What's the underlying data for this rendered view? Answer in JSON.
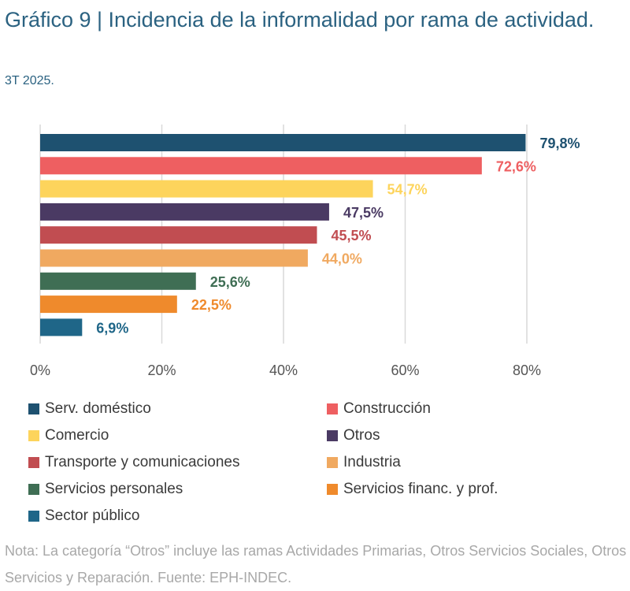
{
  "title": "Gráfico 9 | Incidencia de la informalidad por rama de actividad.",
  "subtitle": "3T 2025.",
  "note": "Nota: La categoría “Otros” incluye las ramas Actividades Primarias, Otros Servicios Sociales, Otros Servicios y Reparación. Fuente: EPH-INDEC.",
  "chart_data": {
    "type": "bar",
    "orientation": "horizontal",
    "title": "Gráfico 9 | Incidencia de la informalidad por rama de actividad.",
    "xlabel": "",
    "ylabel": "",
    "xlim": [
      0,
      80
    ],
    "grid": true,
    "legend_placement": "bottom",
    "x_ticks": [
      "0%",
      "20%",
      "40%",
      "60%",
      "80%"
    ],
    "x_tick_values": [
      0,
      20,
      40,
      60,
      80
    ],
    "categories": [
      "Serv. doméstico",
      "Construcción",
      "Comercio",
      "Otros",
      "Transporte y comunicaciones",
      "Industria",
      "Servicios personales",
      "Servicios financ. y prof.",
      "Sector público"
    ],
    "values": [
      79.8,
      72.6,
      54.7,
      47.5,
      45.5,
      44.0,
      25.6,
      22.5,
      6.9
    ],
    "labels": [
      "79,8%",
      "72,6%",
      "54,7%",
      "47,5%",
      "45,5%",
      "44,0%",
      "25,6%",
      "22,5%",
      "6,9%"
    ],
    "colors": [
      "#1e5170",
      "#ee5f61",
      "#fdd45c",
      "#4a3a63",
      "#c14d51",
      "#f0a960",
      "#3f6e54",
      "#ef8a2c",
      "#1f6688"
    ]
  }
}
